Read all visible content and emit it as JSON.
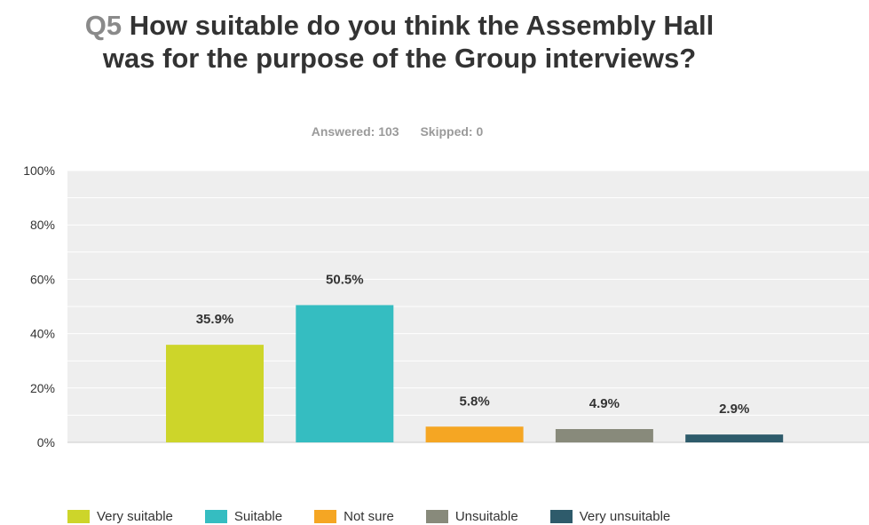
{
  "question": {
    "number": "Q5",
    "text": "How suitable do you think the Assembly Hall was for the purpose of the Group interviews?"
  },
  "summary": {
    "answered": "Answered: 103",
    "skipped": "Skipped: 0"
  },
  "chart_data": {
    "type": "bar",
    "categories": [
      "Very suitable",
      "Suitable",
      "Not sure",
      "Unsuitable",
      "Very unsuitable"
    ],
    "values": [
      35.9,
      50.5,
      5.8,
      4.9,
      2.9
    ],
    "value_labels": [
      "35.9%",
      "50.5%",
      "5.8%",
      "4.9%",
      "2.9%"
    ],
    "colors": [
      "#cdd52a",
      "#35bdc1",
      "#f5a623",
      "#888a7b",
      "#2e5b6b"
    ],
    "ylim": [
      0,
      100
    ],
    "yticks": [
      0,
      20,
      40,
      60,
      80,
      100
    ],
    "ytick_labels": [
      "0%",
      "20%",
      "40%",
      "60%",
      "80%",
      "100%"
    ],
    "grid": true,
    "legend_position": "bottom",
    "background": "#eeeeee"
  }
}
